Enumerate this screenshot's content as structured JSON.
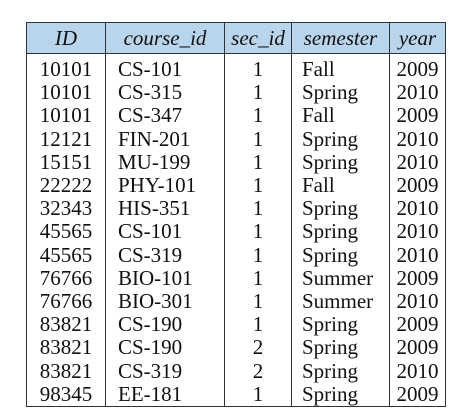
{
  "table": {
    "headers": [
      "ID",
      "course_id",
      "sec_id",
      "semester",
      "year"
    ],
    "rows": [
      [
        "10101",
        "CS-101",
        "1",
        "Fall",
        "2009"
      ],
      [
        "10101",
        "CS-315",
        "1",
        "Spring",
        "2010"
      ],
      [
        "10101",
        "CS-347",
        "1",
        "Fall",
        "2009"
      ],
      [
        "12121",
        "FIN-201",
        "1",
        "Spring",
        "2010"
      ],
      [
        "15151",
        "MU-199",
        "1",
        "Spring",
        "2010"
      ],
      [
        "22222",
        "PHY-101",
        "1",
        "Fall",
        "2009"
      ],
      [
        "32343",
        "HIS-351",
        "1",
        "Spring",
        "2010"
      ],
      [
        "45565",
        "CS-101",
        "1",
        "Spring",
        "2010"
      ],
      [
        "45565",
        "CS-319",
        "1",
        "Spring",
        "2010"
      ],
      [
        "76766",
        "BIO-101",
        "1",
        "Summer",
        "2009"
      ],
      [
        "76766",
        "BIO-301",
        "1",
        "Summer",
        "2010"
      ],
      [
        "83821",
        "CS-190",
        "1",
        "Spring",
        "2009"
      ],
      [
        "83821",
        "CS-190",
        "2",
        "Spring",
        "2009"
      ],
      [
        "83821",
        "CS-319",
        "2",
        "Spring",
        "2010"
      ],
      [
        "98345",
        "EE-181",
        "1",
        "Spring",
        "2009"
      ]
    ]
  },
  "colors": {
    "header_background": "#b9d5ec",
    "border": "#333333",
    "text": "#111111"
  }
}
